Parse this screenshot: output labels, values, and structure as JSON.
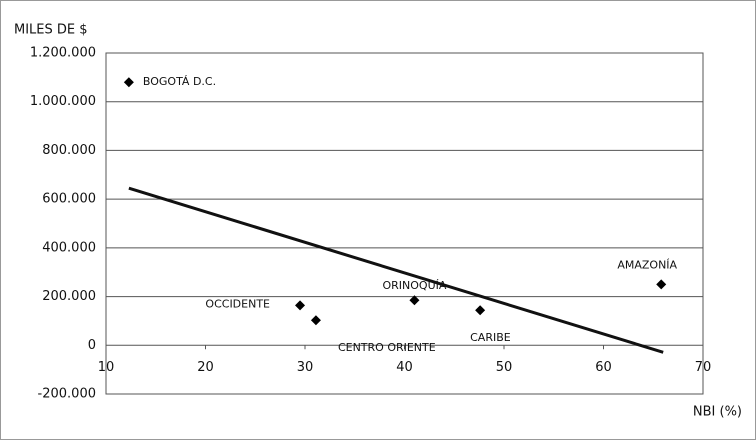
{
  "chart_data": {
    "type": "scatter",
    "y_label": "MILES DE $",
    "x_label": "NBI (%)",
    "labels": [
      "BOGOTÁ D.C.",
      "OCCIDENTE",
      "CENTRO ORIENTE",
      "ORINOQUÍA",
      "CARIBE",
      "AMAZONÍA"
    ],
    "x": [
      12.3,
      29.5,
      31.1,
      41,
      47.6,
      65.8
    ],
    "values": [
      1080000,
      164000,
      103000,
      185000,
      144000,
      250000
    ],
    "color": "#000000",
    "trendline": {
      "x": [
        12.3,
        66
      ],
      "values": [
        645000,
        -29000
      ]
    },
    "xlim": [
      10,
      70
    ],
    "xticks": [
      10,
      20,
      30,
      40,
      50,
      60,
      70
    ],
    "ylim": [
      -200000,
      1200000
    ],
    "yticks": [
      {
        "value": -200000,
        "label": "-200.000"
      },
      0,
      {
        "value": 200000,
        "label": "200.000"
      },
      {
        "value": 400000,
        "label": "400.000"
      },
      {
        "value": 600000,
        "label": "600.000"
      },
      {
        "value": 800000,
        "label": "800.000"
      },
      {
        "value": 1000000,
        "label": "1.000.000"
      },
      {
        "value": 1200000,
        "label": "1.200.000"
      }
    ],
    "grid": true
  }
}
